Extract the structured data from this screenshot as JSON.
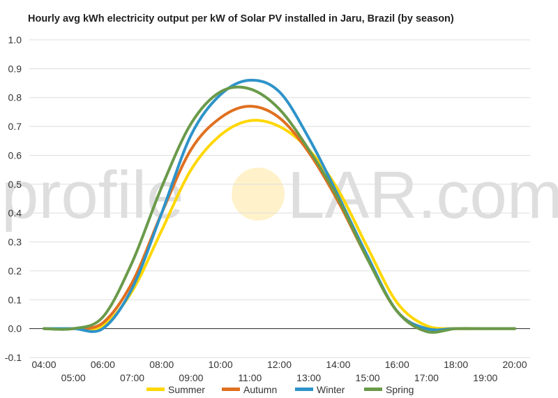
{
  "chart_data": {
    "type": "line",
    "title": "Hourly avg kWh electricity output per kW of Solar PV installed in Jaru, Brazil (by season)",
    "xlabel": "",
    "ylabel": "",
    "x": [
      "04:00",
      "05:00",
      "06:00",
      "07:00",
      "08:00",
      "09:00",
      "10:00",
      "11:00",
      "12:00",
      "13:00",
      "14:00",
      "15:00",
      "16:00",
      "17:00",
      "18:00",
      "19:00",
      "20:00"
    ],
    "ylim": [
      -0.1,
      1.0
    ],
    "yticks": [
      "-0.1",
      "0.0",
      "0.1",
      "0.2",
      "0.3",
      "0.4",
      "0.5",
      "0.6",
      "0.7",
      "0.8",
      "0.9",
      "1.0"
    ],
    "grid": true,
    "legend_position": "bottom",
    "series": [
      {
        "name": "Summer",
        "color": "#FFD700",
        "values": [
          0,
          0,
          0.01,
          0.13,
          0.34,
          0.55,
          0.67,
          0.72,
          0.7,
          0.62,
          0.48,
          0.28,
          0.09,
          0.01,
          0,
          0,
          0
        ]
      },
      {
        "name": "Autumn",
        "color": "#E07020",
        "values": [
          0,
          0,
          0.02,
          0.16,
          0.4,
          0.62,
          0.73,
          0.77,
          0.73,
          0.61,
          0.44,
          0.24,
          0.06,
          0,
          0,
          0,
          0
        ]
      },
      {
        "name": "Winter",
        "color": "#2E93C9",
        "values": [
          0,
          0,
          0,
          0.14,
          0.4,
          0.67,
          0.81,
          0.86,
          0.82,
          0.66,
          0.46,
          0.25,
          0.06,
          0,
          0,
          0,
          0
        ]
      },
      {
        "name": "Spring",
        "color": "#6A9A4A",
        "values": [
          0,
          0,
          0.04,
          0.23,
          0.49,
          0.71,
          0.82,
          0.83,
          0.76,
          0.62,
          0.45,
          0.24,
          0.06,
          -0.01,
          0,
          0,
          0
        ]
      }
    ]
  },
  "watermark": {
    "left": "profile",
    "right": "LAR.com"
  }
}
